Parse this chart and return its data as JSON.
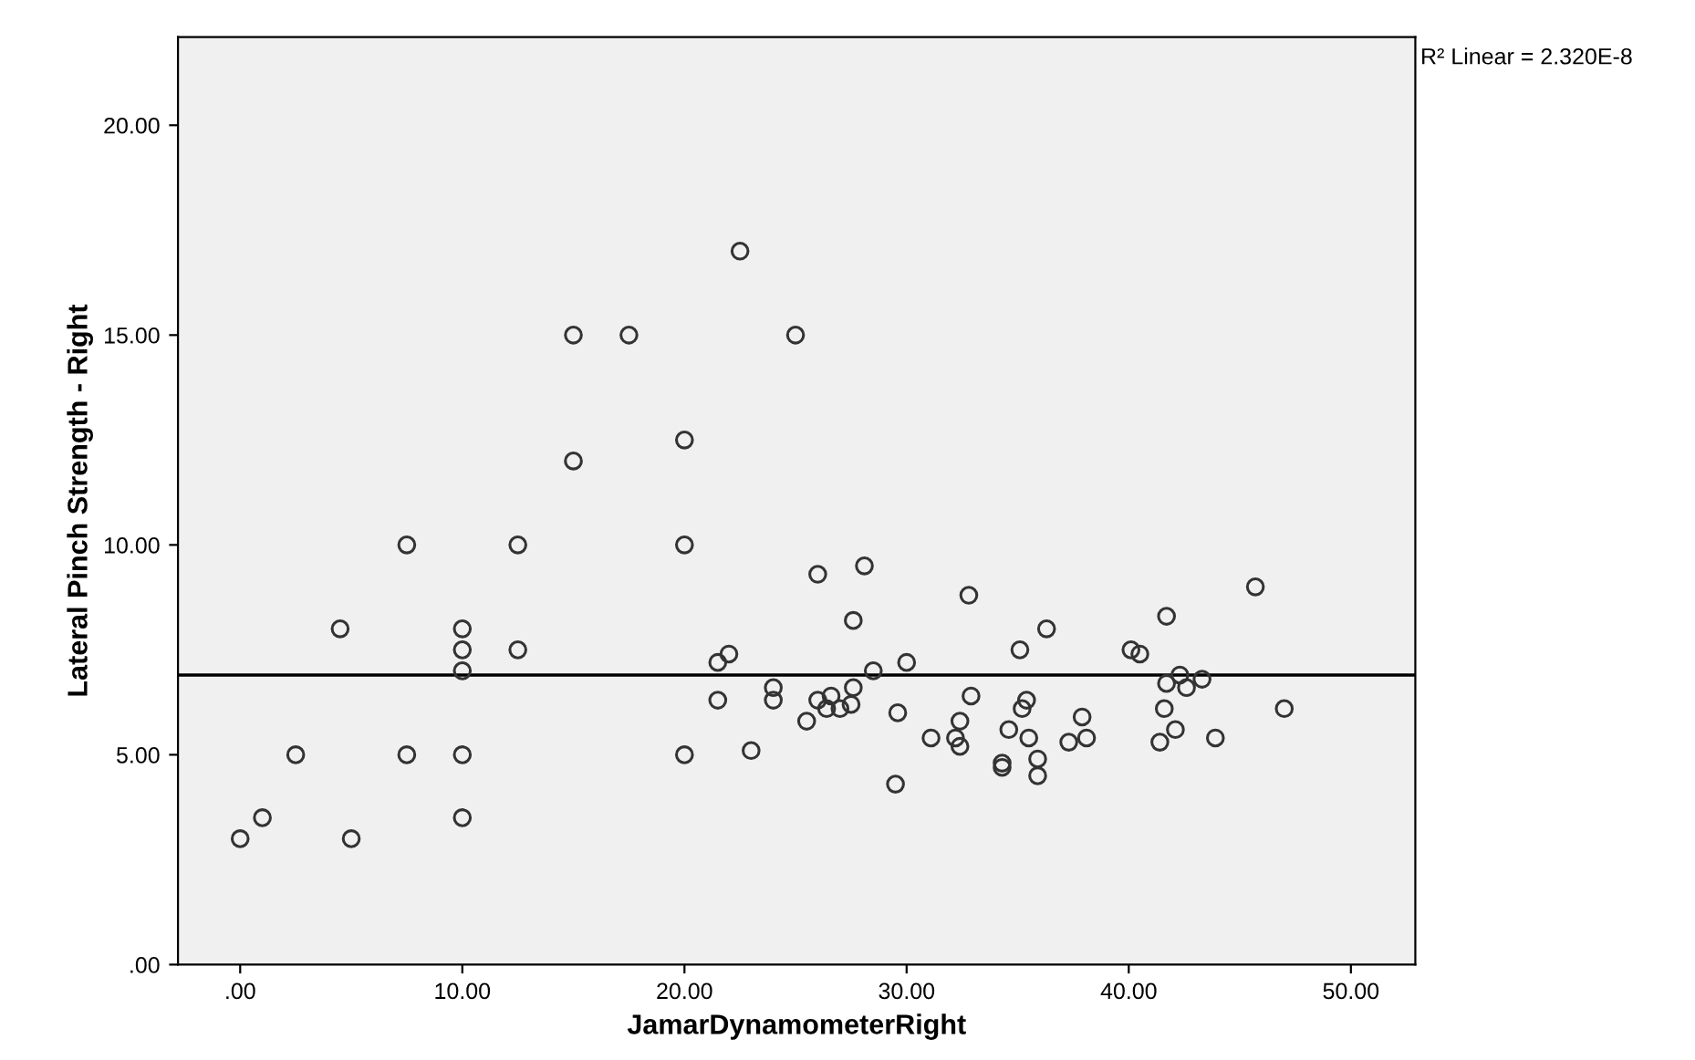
{
  "chart_data": {
    "type": "scatter",
    "xlabel": "JamarDynamometerRight",
    "ylabel": "Lateral Pinch Strength - Right",
    "annotations": [
      "R² Linear = 2.320E-8"
    ],
    "xlim": [
      -2.8,
      52.9
    ],
    "ylim": [
      0,
      22.1
    ],
    "xticks": [
      {
        "value": 0,
        "label": ".00"
      },
      {
        "value": 10,
        "label": "10.00"
      },
      {
        "value": 20,
        "label": "20.00"
      },
      {
        "value": 30,
        "label": "30.00"
      },
      {
        "value": 40,
        "label": "40.00"
      },
      {
        "value": 50,
        "label": "50.00"
      }
    ],
    "yticks": [
      {
        "value": 0,
        "label": ".00"
      },
      {
        "value": 5,
        "label": "5.00"
      },
      {
        "value": 10,
        "label": "10.00"
      },
      {
        "value": 15,
        "label": "15.00"
      },
      {
        "value": 20,
        "label": "20.00"
      }
    ],
    "grid": false,
    "marker": "circle",
    "legend": false,
    "series": [
      {
        "color": "#333333",
        "x": [
          22.5,
          15.0,
          17.5,
          25.0,
          20.0,
          15.0,
          7.5,
          12.5,
          20.0,
          4.5,
          10.0,
          10.0,
          12.5,
          10.0,
          21.5,
          22.0,
          21.5,
          24.0,
          24.0,
          2.5,
          7.5,
          10.0,
          20.0,
          23.0,
          1.0,
          0.0,
          5.0,
          10.0,
          26.0,
          28.1,
          32.8,
          27.6,
          36.3,
          35.1,
          45.7,
          41.7,
          40.1,
          40.5,
          28.5,
          30.0,
          26.0,
          26.6,
          26.4,
          27.0,
          27.5,
          27.6,
          25.5,
          29.6,
          29.5,
          32.9,
          32.4,
          32.2,
          32.4,
          31.1,
          34.6,
          35.4,
          35.2,
          35.5,
          34.3,
          34.3,
          35.9,
          35.9,
          37.9,
          37.3,
          38.1,
          42.3,
          41.7,
          42.6,
          43.3,
          41.6,
          42.1,
          41.4,
          43.9,
          47.0
        ],
        "values": [
          17.0,
          15.0,
          15.0,
          15.0,
          12.5,
          12.0,
          10.0,
          10.0,
          10.0,
          8.0,
          8.0,
          7.5,
          7.5,
          7.0,
          7.2,
          7.4,
          6.3,
          6.6,
          6.3,
          5.0,
          5.0,
          5.0,
          5.0,
          5.1,
          3.5,
          3.0,
          3.0,
          3.5,
          9.3,
          9.5,
          8.8,
          8.2,
          8.0,
          7.5,
          9.0,
          8.3,
          7.5,
          7.4,
          7.0,
          7.2,
          6.3,
          6.4,
          6.1,
          6.1,
          6.2,
          6.6,
          5.8,
          6.0,
          4.3,
          6.4,
          5.8,
          5.4,
          5.2,
          5.4,
          5.6,
          6.3,
          6.1,
          5.4,
          4.8,
          4.7,
          4.9,
          4.5,
          5.9,
          5.3,
          5.4,
          6.9,
          6.7,
          6.6,
          6.8,
          6.1,
          5.6,
          5.3,
          5.4,
          6.1
        ]
      },
      {
        "type": "line",
        "color": "#000000",
        "x": [
          -2.8,
          52.9
        ],
        "values": [
          6.9,
          6.9
        ],
        "marker": "none",
        "line_style": "solid"
      }
    ]
  }
}
